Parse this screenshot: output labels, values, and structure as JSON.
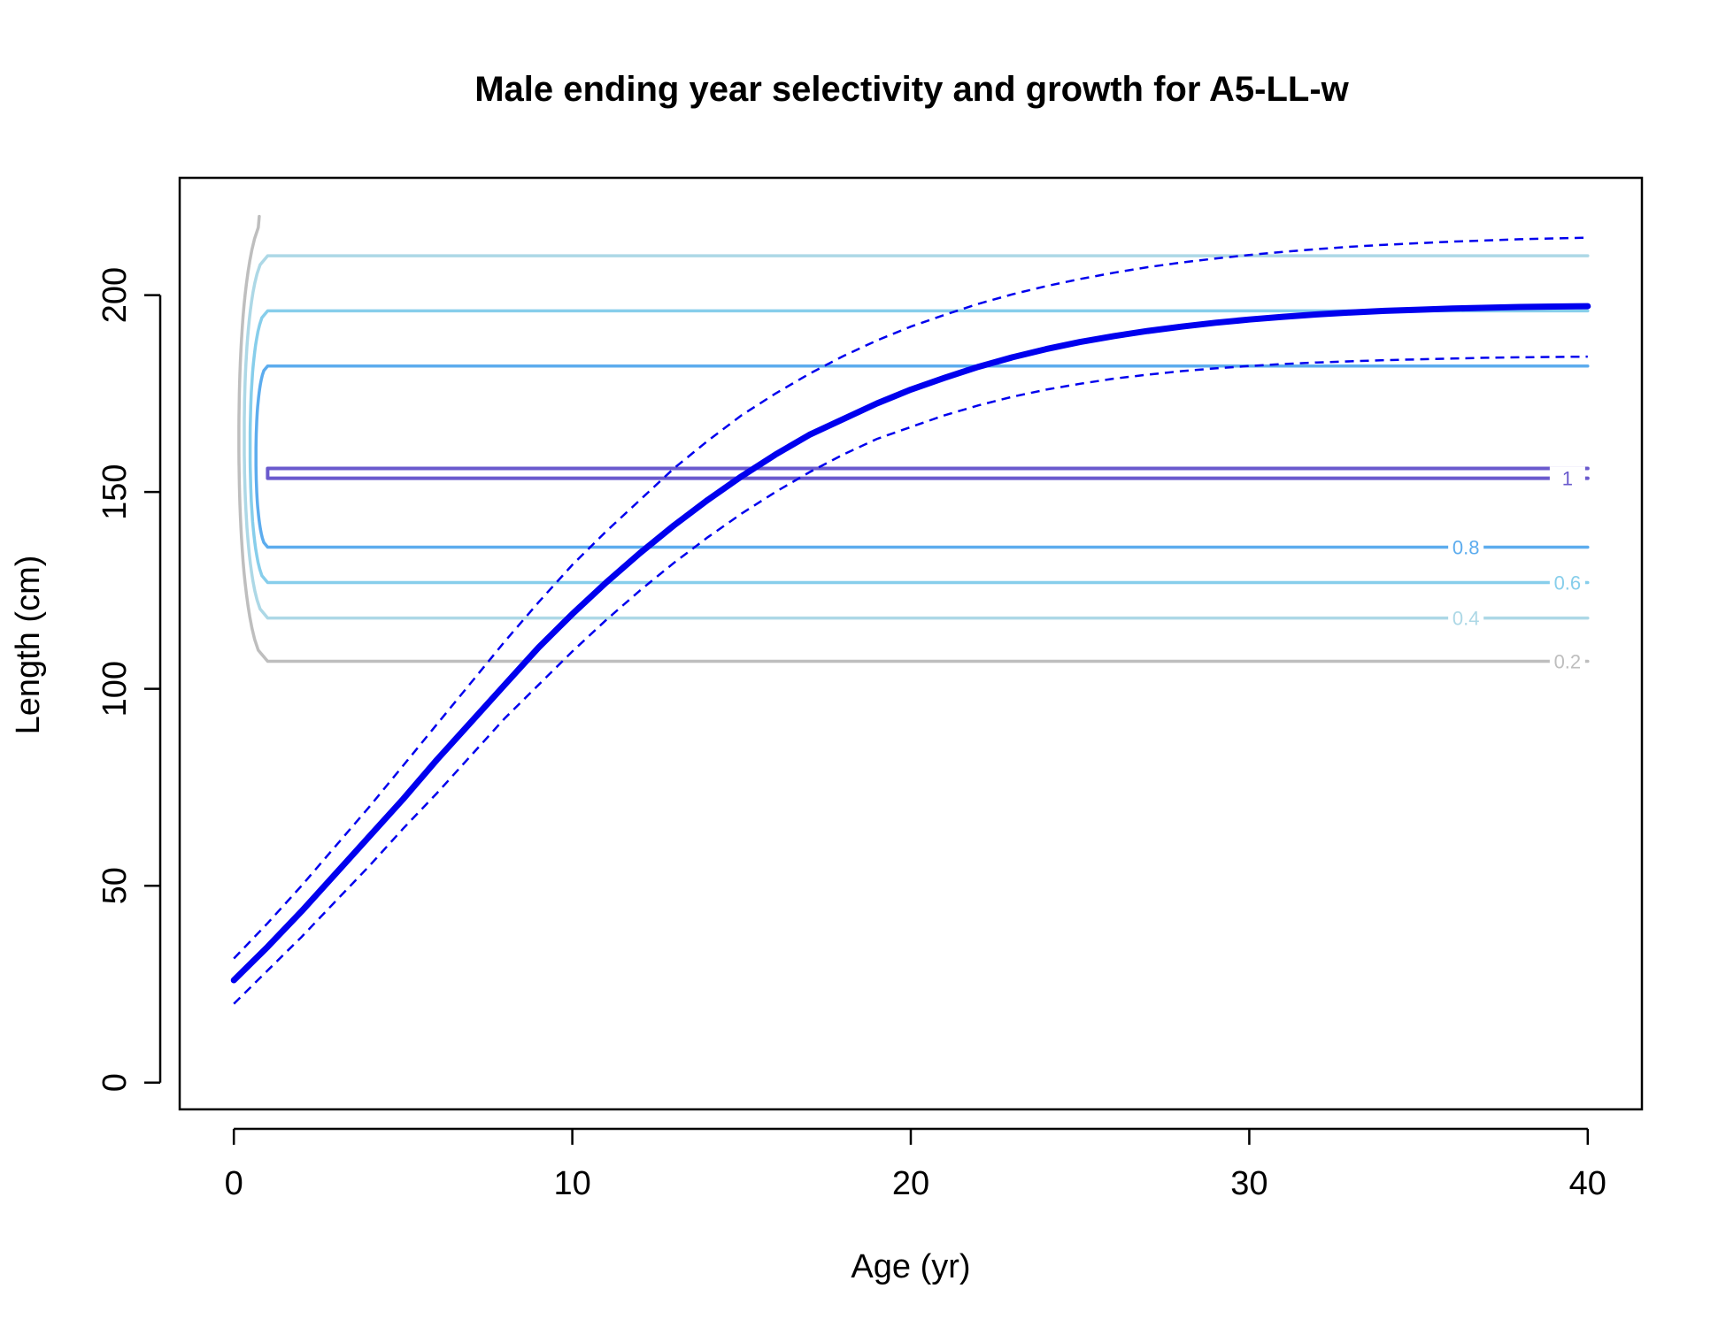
{
  "chart_data": {
    "type": "line",
    "title": "Male ending year selectivity and growth for A5-LL-w",
    "xlabel": "Age (yr)",
    "ylabel": "Length (cm)",
    "xlim": [
      -1.6,
      41.6
    ],
    "ylim": [
      -6.8,
      229.8
    ],
    "xticks": [
      0,
      10,
      20,
      30,
      40
    ],
    "yticks": [
      0,
      50,
      100,
      150,
      200
    ],
    "grid": false,
    "legend": "none",
    "growth": {
      "color": "#0000ee",
      "x": [
        0,
        1,
        2,
        3,
        4,
        5,
        6,
        7,
        8,
        9,
        10,
        11,
        12,
        13,
        14,
        15,
        16,
        17,
        18,
        19,
        20,
        21,
        22,
        23,
        24,
        25,
        26,
        27,
        28,
        29,
        30,
        31,
        32,
        33,
        34,
        35,
        36,
        37,
        38,
        39,
        40
      ],
      "mean": [
        26,
        34.5,
        43.5,
        53,
        62.5,
        72,
        82,
        91.5,
        101,
        110.5,
        119,
        127,
        134.5,
        141.5,
        148,
        154,
        159.5,
        164.5,
        168.5,
        172.5,
        176,
        179,
        181.8,
        184.2,
        186.3,
        188.1,
        189.6,
        190.9,
        192,
        193,
        193.8,
        194.5,
        195.1,
        195.6,
        196,
        196.3,
        196.6,
        196.8,
        197,
        197.1,
        197.2
      ],
      "upper": [
        31.5,
        40.5,
        50,
        60,
        70,
        80.5,
        91,
        101.5,
        112,
        122,
        131.5,
        140,
        148,
        156,
        163,
        169.5,
        175,
        180,
        184.5,
        188.5,
        192,
        195,
        197.8,
        200.2,
        202.3,
        204.1,
        205.7,
        207.1,
        208.3,
        209.3,
        210.2,
        211,
        211.7,
        212.3,
        212.8,
        213.2,
        213.6,
        213.9,
        214.2,
        214.4,
        214.6
      ],
      "lower": [
        20,
        28.5,
        37,
        46,
        55,
        64.5,
        73.5,
        83,
        92.5,
        101,
        109.5,
        117.5,
        125,
        132,
        138.5,
        144.5,
        150,
        155,
        159.5,
        163.5,
        166.5,
        169.5,
        172,
        174.2,
        176,
        177.5,
        178.8,
        179.8,
        180.7,
        181.4,
        182,
        182.5,
        182.9,
        183.2,
        183.5,
        183.7,
        183.9,
        184.1,
        184.2,
        184.3,
        184.4
      ]
    },
    "selectivity_contours": [
      {
        "level": 0.2,
        "label": "0.2",
        "color": "#bebebe",
        "lower": 107,
        "upper": 220,
        "label_x": 39.4,
        "width": 3.5
      },
      {
        "level": 0.4,
        "label": "0.4",
        "color": "#add8e6",
        "lower": 118,
        "upper": 210,
        "label_x": 36.4,
        "width": 3.5
      },
      {
        "level": 0.6,
        "label": "0.6",
        "color": "#87ceeb",
        "lower": 127,
        "upper": 196,
        "label_x": 39.4,
        "width": 3.5
      },
      {
        "level": 0.8,
        "label": "0.8",
        "color": "#5cacee",
        "lower": 136,
        "upper": 182,
        "label_x": 36.4,
        "width": 3.5
      },
      {
        "level": 1,
        "label": "1",
        "color": "#6a5acd",
        "lower": 153.5,
        "upper": 156,
        "label_x": 39.4,
        "width": 4
      }
    ]
  }
}
